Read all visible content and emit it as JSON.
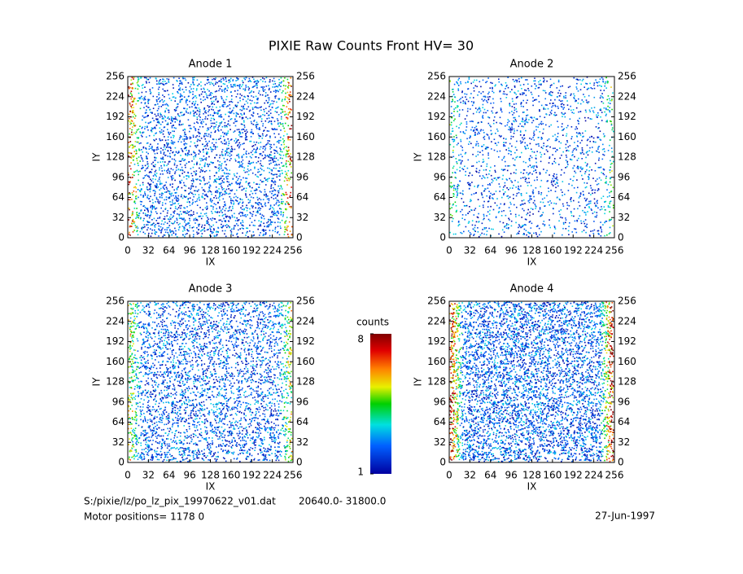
{
  "title": "PIXIE Raw Counts Front HV= 30",
  "chart_data": [
    {
      "type": "heatmap",
      "title": "Anode 1",
      "xlabel": "IX",
      "ylabel": "IY",
      "xlim": [
        0,
        256
      ],
      "ylim": [
        0,
        256
      ],
      "xticks": [
        0,
        32,
        64,
        96,
        128,
        160,
        192,
        224,
        256
      ],
      "yticks": [
        0,
        32,
        64,
        96,
        128,
        160,
        192,
        224,
        256
      ],
      "y2lim": [
        0,
        256
      ],
      "y2ticks": [
        0,
        32,
        64,
        96,
        128,
        160,
        192,
        224,
        256
      ]
    },
    {
      "type": "heatmap",
      "title": "Anode 2",
      "xlabel": "IX",
      "ylabel": "IY",
      "xlim": [
        0,
        256
      ],
      "ylim": [
        0,
        256
      ],
      "xticks": [
        0,
        32,
        64,
        96,
        128,
        160,
        192,
        224,
        256
      ],
      "yticks": [
        0,
        32,
        64,
        96,
        128,
        160,
        192,
        224,
        256
      ],
      "y2lim": [
        0,
        256
      ],
      "y2ticks": [
        0,
        32,
        64,
        96,
        128,
        160,
        192,
        224,
        256
      ]
    },
    {
      "type": "heatmap",
      "title": "Anode 3",
      "xlabel": "IX",
      "ylabel": "IY",
      "xlim": [
        0,
        256
      ],
      "ylim": [
        0,
        256
      ],
      "xticks": [
        0,
        32,
        64,
        96,
        128,
        160,
        192,
        224,
        256
      ],
      "yticks": [
        0,
        32,
        64,
        96,
        128,
        160,
        192,
        224,
        256
      ],
      "y2lim": [
        0,
        256
      ],
      "y2ticks": [
        0,
        32,
        64,
        96,
        128,
        160,
        192,
        224,
        256
      ]
    },
    {
      "type": "heatmap",
      "title": "Anode 4",
      "xlabel": "IX",
      "ylabel": "IY",
      "xlim": [
        0,
        256
      ],
      "ylim": [
        0,
        256
      ],
      "xticks": [
        0,
        32,
        64,
        96,
        128,
        160,
        192,
        224,
        256
      ],
      "yticks": [
        0,
        32,
        64,
        96,
        128,
        160,
        192,
        224,
        256
      ],
      "y2lim": [
        0,
        256
      ],
      "y2ticks": [
        0,
        32,
        64,
        96,
        128,
        160,
        192,
        224,
        256
      ]
    }
  ],
  "colorbar": {
    "label": "counts",
    "lim": [
      1,
      8
    ],
    "ticks": [
      1,
      8
    ]
  },
  "footer": {
    "file": "S:/pixie/lz/po_lz_pix_19970622_v01.dat",
    "range": "20640.0- 31800.0",
    "motor": "Motor positions= 1178 0",
    "date": "27-Jun-1997"
  }
}
